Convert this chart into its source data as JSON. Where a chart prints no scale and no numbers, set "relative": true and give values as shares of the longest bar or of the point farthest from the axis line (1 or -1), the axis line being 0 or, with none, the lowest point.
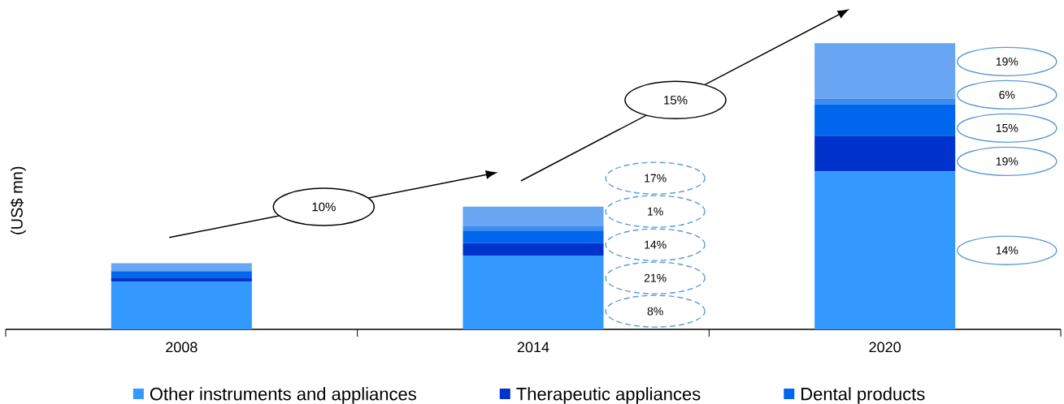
{
  "chart_data": {
    "type": "bar",
    "stacked": true,
    "relative": true,
    "ylabel": "(US$ mn)",
    "legend": "bottom",
    "categories": [
      "2008",
      "2014",
      "2020"
    ],
    "series": [
      {
        "name": "Other instruments and appliances",
        "color": "#3399ff",
        "values": [
          0.166,
          0.258,
          0.552
        ]
      },
      {
        "name": "Therapeutic appliances",
        "color": "#0033cc",
        "values": [
          0.015,
          0.044,
          0.125
        ]
      },
      {
        "name": "Dental products",
        "color": "#0066ee",
        "values": [
          0.02,
          0.043,
          0.11
        ]
      },
      {
        "color": "#3d8cf0",
        "values": [
          0.003,
          0.015,
          0.02
        ]
      },
      {
        "color": "#68a5f3",
        "values": [
          0.027,
          0.069,
          0.193
        ]
      }
    ],
    "annotations": [
      "10%",
      "15%",
      "17%",
      "1%",
      "14%",
      "21%",
      "8%",
      "19%",
      "6%",
      "15%",
      "19%",
      "14%"
    ]
  }
}
